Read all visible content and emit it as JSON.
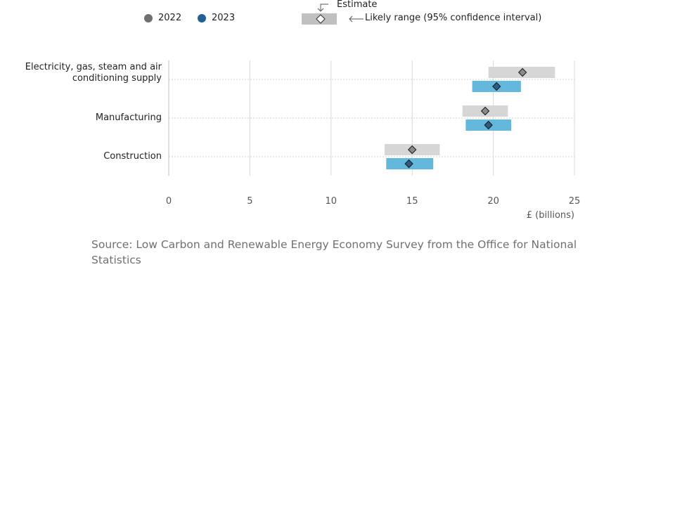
{
  "legend": {
    "year_a": "2022",
    "year_b": "2023",
    "estimate_label": "Estimate",
    "range_label": "Likely range (95% confidence interval)"
  },
  "colors": {
    "ci_2022": "#d6d6d6",
    "ci_2023": "#64b8dc",
    "dot_2022": "#707071",
    "dot_2023": "#206095",
    "marker_2022": "#8a8a8a",
    "marker_2023": "#2a5d86",
    "grid": "#d9d9d9"
  },
  "chart_data": {
    "type": "dot-range",
    "xlabel": "£ (billions)",
    "xlim": [
      0,
      25
    ],
    "xticks": [
      0,
      5,
      10,
      15,
      20,
      25
    ],
    "grid": true,
    "categories": [
      "Electricity, gas, steam and air conditioning supply",
      "Manufacturing",
      "Construction"
    ],
    "series": [
      {
        "name": "2022",
        "estimates": [
          21.8,
          19.5,
          15.0
        ],
        "ci_low": [
          19.7,
          18.1,
          13.3
        ],
        "ci_high": [
          23.8,
          20.9,
          16.7
        ]
      },
      {
        "name": "2023",
        "estimates": [
          20.2,
          19.7,
          14.8
        ],
        "ci_low": [
          18.7,
          18.3,
          13.4
        ],
        "ci_high": [
          21.7,
          21.1,
          16.3
        ]
      }
    ]
  },
  "source": "Source: Low Carbon and Renewable Energy Economy Survey from the Office for National Statistics"
}
